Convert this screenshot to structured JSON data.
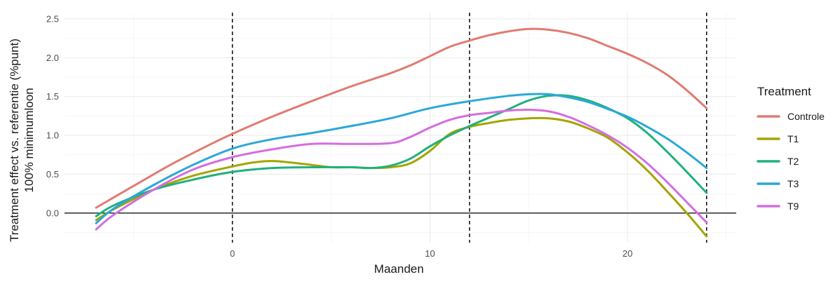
{
  "chart_data": {
    "type": "line",
    "title": "",
    "xlabel": "Maanden",
    "ylabel_line1": "Treatment effect vs. referentie (%punt)",
    "ylabel_line2": "100% minimumloon",
    "xlim": [
      -8.5,
      25.5
    ],
    "ylim": [
      -0.38,
      2.58
    ],
    "x_ticks": [
      0,
      10,
      20
    ],
    "y_ticks": [
      0.0,
      0.5,
      1.0,
      1.5,
      2.0,
      2.5
    ],
    "x_tick_labels": [
      "0",
      "10",
      "20"
    ],
    "y_tick_labels": [
      "0.0",
      "0.5",
      "1.0",
      "1.5",
      "2.0",
      "2.5"
    ],
    "vlines": [
      0,
      12,
      24
    ],
    "hline": 0,
    "grid": true,
    "legend_title": "Treatment",
    "legend_position": "right",
    "series": [
      {
        "name": "Controle",
        "color": "#E07B72",
        "x": [
          -6.9,
          -5,
          -3,
          -1,
          0,
          2,
          4,
          6,
          8,
          9,
          10,
          11,
          12,
          13,
          14,
          15,
          16,
          17,
          18,
          19,
          20,
          21,
          22,
          23,
          24
        ],
        "y": [
          0.07,
          0.35,
          0.64,
          0.9,
          1.02,
          1.24,
          1.44,
          1.63,
          1.8,
          1.9,
          2.02,
          2.14,
          2.22,
          2.29,
          2.34,
          2.37,
          2.36,
          2.32,
          2.25,
          2.15,
          2.05,
          1.93,
          1.78,
          1.58,
          1.35
        ]
      },
      {
        "name": "T1",
        "color": "#A3A500",
        "x": [
          -6.9,
          -6,
          -4,
          -2,
          0,
          1,
          2,
          3,
          4,
          5,
          6,
          7,
          8,
          9,
          10,
          11,
          12,
          13,
          14,
          15,
          16,
          17,
          18,
          19,
          20,
          21,
          22,
          23,
          24
        ],
        "y": [
          -0.09,
          0.05,
          0.3,
          0.48,
          0.6,
          0.65,
          0.67,
          0.65,
          0.62,
          0.59,
          0.59,
          0.58,
          0.59,
          0.64,
          0.8,
          1.02,
          1.11,
          1.16,
          1.2,
          1.22,
          1.22,
          1.18,
          1.09,
          0.97,
          0.78,
          0.55,
          0.28,
          0.0,
          -0.3
        ]
      },
      {
        "name": "T2",
        "color": "#20B07C",
        "x": [
          -6.9,
          -6,
          -4,
          -2,
          0,
          2,
          4,
          6,
          7,
          8,
          9,
          10,
          11,
          12,
          13,
          14,
          15,
          16,
          17,
          18,
          19,
          20,
          21,
          22,
          23,
          24
        ],
        "y": [
          -0.04,
          0.1,
          0.3,
          0.43,
          0.53,
          0.58,
          0.59,
          0.59,
          0.58,
          0.61,
          0.7,
          0.86,
          1.0,
          1.12,
          1.23,
          1.34,
          1.45,
          1.51,
          1.51,
          1.45,
          1.35,
          1.22,
          1.03,
          0.79,
          0.53,
          0.26
        ]
      },
      {
        "name": "T3",
        "color": "#2AA8D8",
        "x": [
          -6.9,
          -6,
          -4,
          -2,
          0,
          2,
          4,
          6,
          8,
          10,
          12,
          14,
          15,
          16,
          17,
          18,
          19,
          20,
          21,
          22,
          23,
          24
        ],
        "y": [
          -0.13,
          0.06,
          0.36,
          0.62,
          0.83,
          0.95,
          1.03,
          1.12,
          1.22,
          1.35,
          1.44,
          1.51,
          1.53,
          1.53,
          1.49,
          1.43,
          1.34,
          1.24,
          1.11,
          0.96,
          0.78,
          0.58
        ]
      },
      {
        "name": "T9",
        "color": "#D46DE0",
        "x": [
          -6.9,
          -6,
          -4,
          -2,
          0,
          2,
          4,
          6,
          8,
          9,
          10,
          11,
          12,
          13,
          14,
          15,
          16,
          17,
          18,
          19,
          20,
          21,
          22,
          23,
          24
        ],
        "y": [
          -0.21,
          -0.02,
          0.3,
          0.56,
          0.72,
          0.82,
          0.89,
          0.89,
          0.9,
          0.98,
          1.1,
          1.2,
          1.26,
          1.29,
          1.32,
          1.33,
          1.31,
          1.24,
          1.13,
          1.0,
          0.84,
          0.64,
          0.4,
          0.14,
          -0.12
        ]
      }
    ]
  }
}
